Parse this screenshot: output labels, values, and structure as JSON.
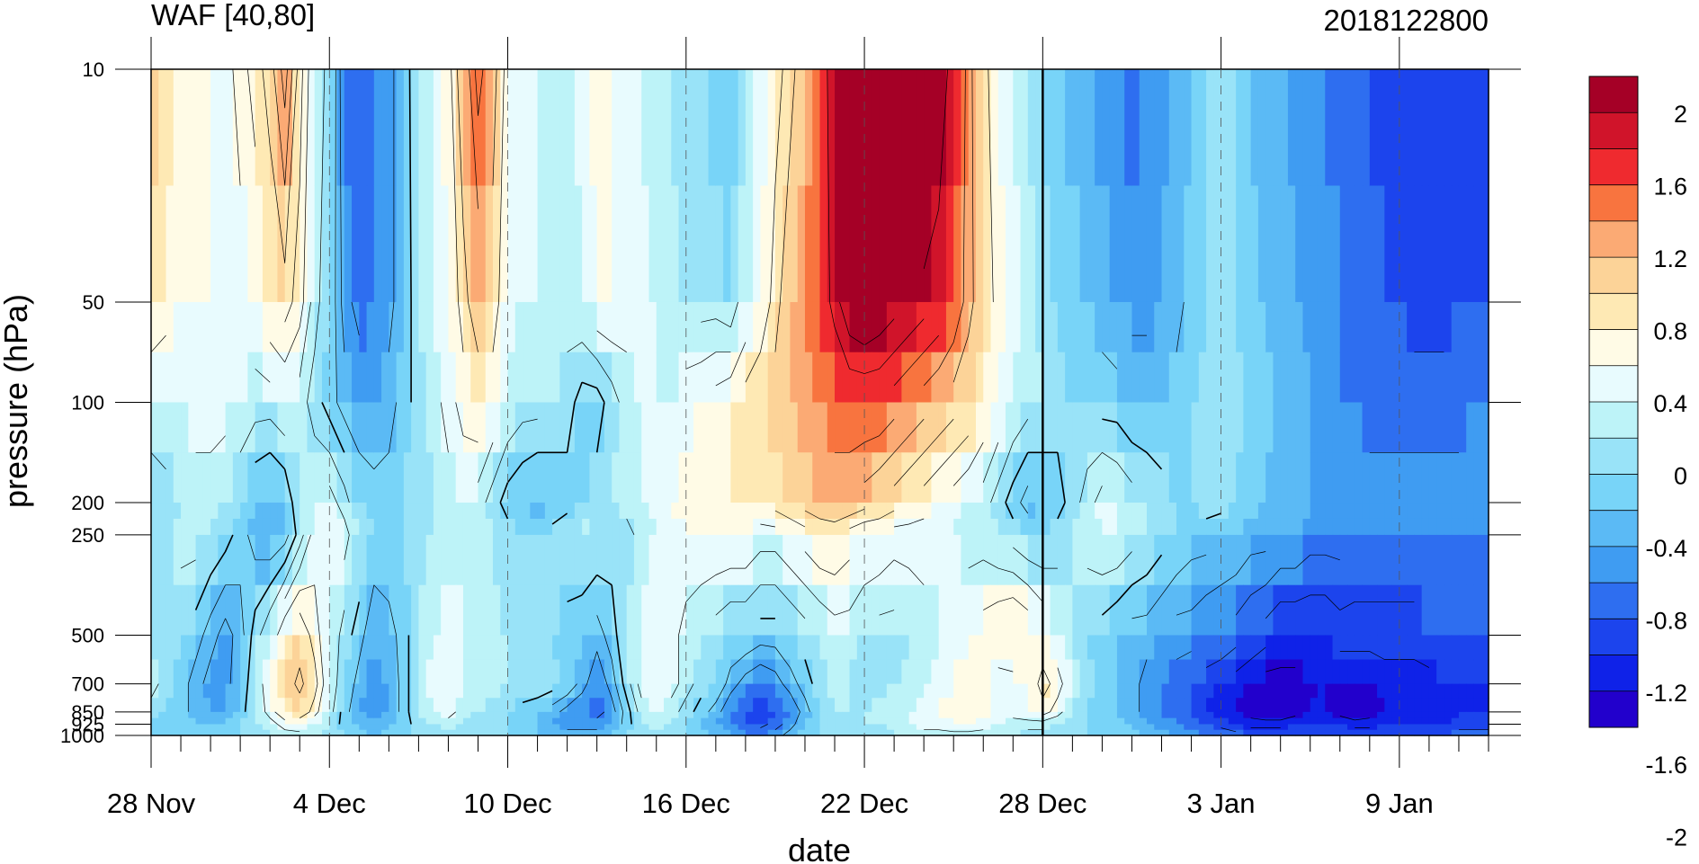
{
  "title_left": "WAF [40,80]",
  "title_right": "2018122800",
  "chart_data": {
    "type": "heatmap",
    "title": "WAF [40,80]",
    "subtitle": "2018122800",
    "xlabel": "date",
    "ylabel": "pressure (hPa)",
    "x_tick_labels": [
      "28 Nov",
      "4 Dec",
      "10 Dec",
      "16 Dec",
      "22 Dec",
      "28 Dec",
      "3 Jan",
      "9 Jan"
    ],
    "x_tick_days": [
      0,
      6,
      12,
      18,
      24,
      30,
      36,
      42
    ],
    "xlim": [
      0,
      45
    ],
    "y_levels": [
      10,
      50,
      100,
      200,
      250,
      500,
      700,
      850,
      925,
      1000
    ],
    "y_tick_labels": [
      "10",
      "50",
      "100",
      "200",
      "250",
      "500",
      "700",
      "850",
      "925",
      "1000"
    ],
    "ylim": [
      1000,
      10
    ],
    "y_scale": "log",
    "marker_line_day": 30,
    "colorbar": {
      "labels": [
        "2",
        "1.6",
        "1.2",
        "0.8",
        "0.4",
        "0",
        "-0.4",
        "-0.8",
        "-1.2",
        "-1.6",
        "-2"
      ],
      "colors": [
        "#a50026",
        "#d0142a",
        "#ef2a2f",
        "#f8743f",
        "#fbaa74",
        "#fcd398",
        "#fee9b4",
        "#fffbe6",
        "#e8fbfe",
        "#bdf3f8",
        "#99e3f8",
        "#78d4f8",
        "#5bbaf5",
        "#3f9cf2",
        "#2e6ef0",
        "#1c44ed",
        "#0f22e8",
        "#2200cc"
      ]
    },
    "grid_days": [
      0,
      0.5,
      1,
      1.5,
      2,
      2.5,
      3,
      3.5,
      4,
      4.5,
      5,
      5.5,
      6,
      6.5,
      7,
      7.5,
      8,
      8.5,
      9,
      9.5,
      10,
      10.5,
      11,
      11.5,
      12,
      12.5,
      13,
      13.5,
      14,
      14.5,
      15,
      15.5,
      16,
      16.5,
      17,
      17.5,
      18,
      18.5,
      19,
      19.5,
      20,
      20.5,
      21,
      21.5,
      22,
      22.5,
      23,
      23.5,
      24,
      24.5,
      25,
      25.5,
      26,
      26.5,
      27,
      27.5,
      28,
      28.5,
      29,
      29.5,
      30,
      30.5,
      31,
      31.5,
      32,
      32.5,
      33,
      33.5,
      34,
      34.5,
      35,
      35.5,
      36,
      36.5,
      37,
      37.5,
      38,
      38.5,
      39,
      39.5,
      40,
      40.5,
      41,
      41.5,
      42,
      42.5,
      43,
      43.5,
      44,
      44.5,
      45
    ],
    "grid_levels": [
      10,
      50,
      100,
      200,
      250,
      500,
      700,
      850,
      925,
      1000
    ],
    "values": [
      [
        1.2,
        1.0,
        0.8,
        0.7,
        0.6,
        0.5,
        0.7,
        0.9,
        1.1,
        1.5,
        0.9,
        0.4,
        0.1,
        -0.6,
        -0.7,
        -0.6,
        -0.5,
        -0.2,
        0.3,
        0.4,
        0.7,
        1.2,
        1.7,
        1.4,
        0.6,
        0.5,
        0.4,
        0.3,
        0.3,
        0.5,
        0.8,
        0.6,
        0.5,
        0.4,
        0.3,
        0.2,
        0.1,
        0.0,
        -0.1,
        -0.2,
        0.2,
        0.4,
        0.7,
        0.9,
        1.2,
        1.6,
        2.0,
        2.6,
        3.0,
        3.0,
        2.9,
        2.8,
        2.6,
        2.3,
        1.8,
        1.3,
        0.9,
        0.6,
        0.4,
        0.2,
        0.0,
        -0.2,
        -0.3,
        -0.4,
        -0.5,
        -0.6,
        -0.7,
        -0.6,
        -0.5,
        -0.4,
        -0.2,
        0.0,
        0.1,
        0.0,
        -0.2,
        -0.3,
        -0.4,
        -0.5,
        -0.6,
        -0.6,
        -0.7,
        -0.8,
        -0.8,
        -0.9,
        -1.0,
        -1.0,
        -1.0,
        -0.9,
        -0.9,
        -0.9,
        -1.0
      ],
      [
        0.8,
        0.7,
        0.6,
        0.6,
        0.6,
        0.5,
        0.5,
        0.6,
        0.8,
        0.9,
        0.7,
        0.3,
        0.0,
        -0.5,
        -0.7,
        -0.6,
        -0.5,
        -0.2,
        0.2,
        0.4,
        0.6,
        0.9,
        1.2,
        1.0,
        0.5,
        0.4,
        0.4,
        0.3,
        0.3,
        0.4,
        0.6,
        0.6,
        0.5,
        0.5,
        0.4,
        0.3,
        0.2,
        0.1,
        0.1,
        0.0,
        0.4,
        0.6,
        0.9,
        1.2,
        1.4,
        1.6,
        1.9,
        2.2,
        2.3,
        2.2,
        2.1,
        2.0,
        1.9,
        1.8,
        1.6,
        1.3,
        1.0,
        0.7,
        0.5,
        0.3,
        0.1,
        0.0,
        -0.1,
        -0.2,
        -0.3,
        -0.4,
        -0.5,
        -0.5,
        -0.4,
        -0.3,
        -0.1,
        0.0,
        0.1,
        0.0,
        -0.1,
        -0.2,
        -0.3,
        -0.4,
        -0.5,
        -0.5,
        -0.6,
        -0.7,
        -0.7,
        -0.8,
        -0.8,
        -0.9,
        -0.9,
        -0.9,
        -0.8,
        -0.8,
        -0.8
      ],
      [
        0.4,
        0.4,
        0.4,
        0.5,
        0.5,
        0.5,
        0.4,
        0.3,
        0.3,
        0.4,
        0.3,
        0.1,
        -0.1,
        -0.3,
        -0.4,
        -0.4,
        -0.3,
        -0.1,
        0.1,
        0.3,
        0.5,
        0.7,
        0.8,
        0.6,
        0.4,
        0.3,
        0.3,
        0.2,
        0.1,
        -0.1,
        -0.1,
        0.1,
        0.3,
        0.4,
        0.4,
        0.4,
        0.5,
        0.6,
        0.7,
        0.8,
        0.9,
        1.0,
        1.1,
        1.2,
        1.3,
        1.4,
        1.5,
        1.6,
        1.6,
        1.6,
        1.5,
        1.4,
        1.3,
        1.2,
        1.1,
        1.0,
        0.8,
        0.6,
        0.4,
        0.3,
        0.2,
        0.1,
        0.0,
        0.0,
        -0.1,
        -0.1,
        -0.2,
        -0.2,
        -0.2,
        -0.1,
        0.0,
        0.1,
        0.2,
        0.1,
        0.0,
        -0.1,
        -0.2,
        -0.3,
        -0.4,
        -0.5,
        -0.6,
        -0.6,
        -0.7,
        -0.7,
        -0.7,
        -0.7,
        -0.7,
        -0.7,
        -0.7,
        -0.6,
        -0.6
      ],
      [
        0.0,
        0.1,
        0.2,
        0.3,
        0.3,
        0.2,
        0.0,
        -0.2,
        -0.3,
        -0.2,
        0.2,
        0.4,
        0.5,
        0.3,
        0.0,
        -0.1,
        -0.1,
        0.0,
        0.1,
        0.2,
        0.3,
        0.4,
        0.3,
        0.1,
        -0.1,
        -0.2,
        -0.3,
        -0.2,
        -0.1,
        0.0,
        0.1,
        0.2,
        0.3,
        0.4,
        0.5,
        0.6,
        0.7,
        0.7,
        0.8,
        0.8,
        0.8,
        0.8,
        0.9,
        1.0,
        1.1,
        1.2,
        1.3,
        1.2,
        1.1,
        1.0,
        0.9,
        0.8,
        0.7,
        0.6,
        0.5,
        0.4,
        0.3,
        0.1,
        -0.1,
        -0.3,
        -0.2,
        -0.1,
        0.1,
        0.3,
        0.5,
        0.4,
        0.3,
        0.2,
        0.1,
        0.0,
        0.0,
        0.1,
        0.1,
        0.0,
        -0.1,
        -0.2,
        -0.3,
        -0.3,
        -0.4,
        -0.4,
        -0.4,
        -0.5,
        -0.5,
        -0.5,
        -0.5,
        -0.5,
        -0.5,
        -0.5,
        -0.5,
        -0.5,
        -0.5
      ],
      [
        0.1,
        0.2,
        0.3,
        0.3,
        0.2,
        0.1,
        -0.1,
        -0.3,
        -0.4,
        -0.3,
        0.1,
        0.5,
        0.6,
        0.5,
        0.2,
        0.0,
        0.0,
        0.0,
        0.1,
        0.2,
        0.3,
        0.4,
        0.3,
        0.2,
        0.1,
        0.0,
        0.0,
        0.1,
        0.2,
        0.3,
        0.2,
        0.1,
        0.1,
        0.3,
        0.4,
        0.5,
        0.6,
        0.6,
        0.6,
        0.6,
        0.6,
        0.5,
        0.5,
        0.6,
        0.7,
        0.8,
        0.8,
        0.7,
        0.6,
        0.6,
        0.5,
        0.5,
        0.5,
        0.4,
        0.4,
        0.3,
        0.3,
        0.2,
        0.1,
        0.0,
        0.0,
        0.1,
        0.2,
        0.3,
        0.4,
        0.4,
        0.3,
        0.2,
        0.1,
        0.0,
        -0.1,
        -0.1,
        -0.2,
        -0.2,
        -0.3,
        -0.3,
        -0.4,
        -0.4,
        -0.5,
        -0.5,
        -0.5,
        -0.6,
        -0.6,
        -0.6,
        -0.6,
        -0.6,
        -0.6,
        -0.6,
        -0.6,
        -0.6,
        -0.6
      ],
      [
        0.2,
        0.1,
        0.0,
        -0.1,
        -0.3,
        -0.5,
        -0.3,
        0.1,
        0.4,
        0.8,
        1.0,
        0.7,
        0.4,
        0.1,
        -0.1,
        -0.4,
        -0.3,
        -0.1,
        0.2,
        0.4,
        0.5,
        0.4,
        0.3,
        0.3,
        0.2,
        0.2,
        0.1,
        0.0,
        -0.1,
        -0.2,
        -0.3,
        -0.1,
        0.2,
        0.4,
        0.6,
        0.5,
        0.3,
        0.2,
        0.1,
        0.0,
        0.0,
        -0.1,
        -0.1,
        0.0,
        0.1,
        0.2,
        0.3,
        0.3,
        0.2,
        0.1,
        0.1,
        0.2,
        0.3,
        0.4,
        0.5,
        0.6,
        0.7,
        0.8,
        0.9,
        0.8,
        0.6,
        0.4,
        0.2,
        0.0,
        -0.1,
        -0.2,
        -0.3,
        -0.3,
        -0.4,
        -0.5,
        -0.5,
        -0.6,
        -0.6,
        -0.7,
        -0.8,
        -0.9,
        -1.0,
        -1.0,
        -1.0,
        -1.0,
        -0.9,
        -0.9,
        -0.9,
        -0.9,
        -0.9,
        -0.9,
        -0.8,
        -0.8,
        -0.8,
        -0.8,
        -0.8
      ],
      [
        0.3,
        0.1,
        -0.1,
        -0.3,
        -0.5,
        -0.5,
        -0.2,
        0.2,
        0.6,
        1.0,
        1.3,
        0.9,
        0.4,
        0.0,
        -0.3,
        -0.5,
        -0.4,
        -0.1,
        0.2,
        0.5,
        0.5,
        0.4,
        0.3,
        0.3,
        0.2,
        0.2,
        0.2,
        0.1,
        0.0,
        -0.3,
        -0.6,
        -0.3,
        0.1,
        0.5,
        0.6,
        0.5,
        0.3,
        0.1,
        0.0,
        -0.3,
        -0.5,
        -0.6,
        -0.5,
        -0.3,
        -0.1,
        0.1,
        0.3,
        0.2,
        0.1,
        0.1,
        0.2,
        0.3,
        0.4,
        0.5,
        0.6,
        0.7,
        0.6,
        0.5,
        0.5,
        0.6,
        0.9,
        0.7,
        0.4,
        0.1,
        -0.1,
        -0.2,
        -0.3,
        -0.5,
        -0.6,
        -0.7,
        -0.8,
        -0.9,
        -1.0,
        -1.1,
        -1.2,
        -1.3,
        -1.3,
        -1.3,
        -1.2,
        -1.2,
        -1.2,
        -1.2,
        -1.2,
        -1.1,
        -1.1,
        -1.1,
        -1.1,
        -1.0,
        -1.0,
        -1.0,
        -1.0
      ],
      [
        0.1,
        0.0,
        -0.1,
        -0.3,
        -0.4,
        -0.4,
        -0.1,
        0.2,
        0.5,
        0.8,
        1.0,
        0.7,
        0.3,
        -0.1,
        -0.4,
        -0.6,
        -0.4,
        -0.1,
        0.2,
        0.4,
        0.5,
        0.3,
        0.2,
        0.1,
        0.0,
        -0.1,
        -0.2,
        -0.3,
        -0.5,
        -0.6,
        -0.7,
        -0.5,
        -0.1,
        0.3,
        0.4,
        0.3,
        0.1,
        -0.1,
        -0.3,
        -0.6,
        -0.8,
        -1.0,
        -0.8,
        -0.6,
        -0.3,
        0.0,
        0.2,
        0.2,
        0.2,
        0.3,
        0.3,
        0.4,
        0.5,
        0.6,
        0.7,
        0.8,
        0.7,
        0.6,
        0.5,
        0.6,
        0.7,
        0.5,
        0.2,
        0.0,
        -0.1,
        -0.2,
        -0.3,
        -0.5,
        -0.6,
        -0.7,
        -0.8,
        -1.0,
        -1.1,
        -1.2,
        -1.3,
        -1.4,
        -1.4,
        -1.3,
        -1.2,
        -1.2,
        -1.3,
        -1.4,
        -1.3,
        -1.2,
        -1.1,
        -1.1,
        -1.1,
        -1.1,
        -1.0,
        -1.0,
        -1.0
      ],
      [
        0.0,
        -0.1,
        -0.1,
        -0.2,
        -0.2,
        -0.2,
        0.0,
        0.2,
        0.3,
        0.5,
        0.6,
        0.4,
        0.2,
        -0.1,
        -0.2,
        -0.3,
        -0.2,
        -0.1,
        0.1,
        0.2,
        0.3,
        0.2,
        0.1,
        0.1,
        0.0,
        -0.1,
        -0.2,
        -0.4,
        -0.5,
        -0.5,
        -0.5,
        -0.4,
        -0.1,
        0.2,
        0.3,
        0.2,
        0.0,
        -0.2,
        -0.4,
        -0.6,
        -0.8,
        -0.9,
        -0.7,
        -0.5,
        -0.2,
        0.0,
        0.1,
        0.2,
        0.2,
        0.2,
        0.3,
        0.4,
        0.5,
        0.5,
        0.6,
        0.6,
        0.5,
        0.4,
        0.3,
        0.3,
        0.3,
        0.2,
        0.1,
        0.0,
        -0.1,
        -0.1,
        -0.2,
        -0.4,
        -0.5,
        -0.6,
        -0.7,
        -0.8,
        -0.9,
        -1.0,
        -1.1,
        -1.1,
        -1.1,
        -1.0,
        -1.0,
        -1.0,
        -1.0,
        -1.1,
        -1.1,
        -1.0,
        -1.0,
        -1.0,
        -1.0,
        -1.0,
        -0.9,
        -0.9,
        -0.9
      ],
      [
        -0.1,
        -0.1,
        -0.1,
        -0.1,
        -0.1,
        -0.1,
        0.0,
        0.1,
        0.2,
        0.3,
        0.3,
        0.2,
        0.1,
        0.0,
        -0.1,
        -0.2,
        -0.1,
        0.0,
        0.0,
        0.1,
        0.1,
        0.1,
        0.0,
        0.0,
        0.0,
        -0.1,
        -0.2,
        -0.3,
        -0.3,
        -0.3,
        -0.3,
        -0.2,
        0.0,
        0.1,
        0.2,
        0.1,
        0.0,
        -0.1,
        -0.2,
        -0.4,
        -0.5,
        -0.6,
        -0.5,
        -0.3,
        -0.1,
        0.0,
        0.1,
        0.1,
        0.1,
        0.1,
        0.2,
        0.2,
        0.3,
        0.3,
        0.3,
        0.3,
        0.3,
        0.2,
        0.2,
        0.1,
        0.1,
        0.1,
        0.0,
        0.0,
        0.0,
        -0.1,
        -0.1,
        -0.2,
        -0.3,
        -0.4,
        -0.5,
        -0.6,
        -0.6,
        -0.7,
        -0.8,
        -0.8,
        -0.8,
        -0.8,
        -0.8,
        -0.8,
        -0.8,
        -0.8,
        -0.8,
        -0.8,
        -0.8,
        -0.8,
        -0.8,
        -0.8,
        -0.7,
        -0.7,
        -0.7
      ]
    ]
  }
}
